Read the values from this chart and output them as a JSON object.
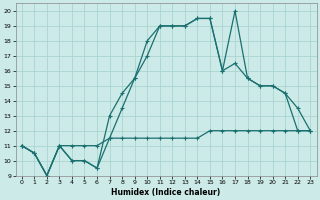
{
  "xlabel": "Humidex (Indice chaleur)",
  "bg_color": "#cceae7",
  "grid_color": "#aad4d0",
  "line_color": "#1a7070",
  "xlim": [
    -0.5,
    23.5
  ],
  "ylim": [
    9,
    20.5
  ],
  "yticks": [
    9,
    10,
    11,
    12,
    13,
    14,
    15,
    16,
    17,
    18,
    19,
    20
  ],
  "xticks": [
    0,
    1,
    2,
    3,
    4,
    5,
    6,
    7,
    8,
    9,
    10,
    11,
    12,
    13,
    14,
    15,
    16,
    17,
    18,
    19,
    20,
    21,
    22,
    23
  ],
  "line1_x": [
    0,
    1,
    2,
    3,
    4,
    5,
    6,
    7,
    8,
    9,
    10,
    11,
    12,
    13,
    14,
    15,
    16,
    17,
    18,
    19,
    20,
    21,
    22,
    23
  ],
  "line1_y": [
    11.0,
    10.5,
    9.0,
    11.0,
    11.0,
    11.0,
    11.0,
    11.5,
    11.5,
    11.5,
    11.5,
    11.5,
    11.5,
    11.5,
    11.5,
    12.0,
    12.0,
    12.0,
    12.0,
    12.0,
    12.0,
    12.0,
    12.0,
    12.0
  ],
  "line2_x": [
    0,
    1,
    2,
    3,
    4,
    5,
    6,
    7,
    8,
    9,
    10,
    11,
    12,
    13,
    14,
    15,
    16,
    17,
    18,
    19,
    20,
    21,
    22,
    23
  ],
  "line2_y": [
    11.0,
    10.5,
    9.0,
    11.0,
    10.0,
    10.0,
    9.5,
    13.0,
    14.5,
    15.5,
    18.0,
    19.0,
    19.0,
    19.0,
    19.5,
    19.5,
    16.0,
    20.0,
    15.5,
    15.0,
    15.0,
    14.5,
    12.0,
    12.0
  ],
  "line3_x": [
    0,
    1,
    2,
    3,
    4,
    5,
    6,
    7,
    8,
    9,
    10,
    11,
    12,
    13,
    14,
    15,
    16,
    17,
    18,
    19,
    20,
    21,
    22,
    23
  ],
  "line3_y": [
    11.0,
    10.5,
    9.0,
    11.0,
    10.0,
    10.0,
    9.5,
    11.5,
    13.5,
    15.5,
    17.0,
    19.0,
    19.0,
    19.0,
    19.5,
    19.5,
    16.0,
    16.5,
    15.5,
    15.0,
    15.0,
    14.5,
    13.5,
    12.0
  ]
}
